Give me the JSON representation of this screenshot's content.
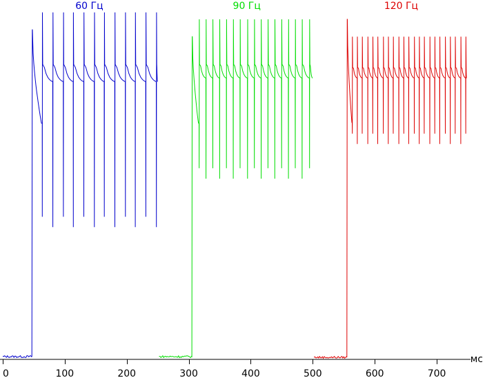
{
  "chart_data": {
    "type": "line",
    "title": "",
    "xlabel": "мс",
    "ylabel": "",
    "xlim": [
      0,
      750
    ],
    "ylim": [
      0,
      100
    ],
    "x_ticks": [
      0,
      100,
      200,
      300,
      400,
      500,
      600,
      700
    ],
    "grid": false,
    "series": [
      {
        "name": "60 Гц",
        "color": "#0000cc",
        "idle": {
          "from": 0,
          "to": 47,
          "level": 0.6
        },
        "turn_on_ms": 47,
        "end_ms": 250,
        "rise_peak": 95,
        "plateau_max": 87,
        "plateau_min": 80,
        "pulse_period_ms": 16.67,
        "pulse_peak": 100,
        "pulse_min": 38,
        "pulse_times_ms": [
          48,
          64,
          81,
          98,
          114,
          131,
          148,
          164,
          181,
          198,
          214,
          231,
          248
        ]
      },
      {
        "name": "90 Гц",
        "color": "#00dd00",
        "idle": {
          "from": 252,
          "to": 305,
          "level": 0.6
        },
        "turn_on_ms": 305,
        "end_ms": 500,
        "rise_peak": 93,
        "plateau_max": 87,
        "plateau_min": 81,
        "pulse_period_ms": 11.11,
        "pulse_peak": 98,
        "pulse_min": 52,
        "pulse_times_ms": [
          306,
          317,
          328,
          339,
          350,
          361,
          372,
          383,
          395,
          406,
          417,
          428,
          439,
          450,
          461,
          472,
          483,
          495
        ]
      },
      {
        "name": "120 Гц",
        "color": "#dd0000",
        "idle": {
          "from": 502,
          "to": 555,
          "level": 0.4
        },
        "turn_on_ms": 555,
        "end_ms": 748,
        "rise_peak": 98,
        "plateau_max": 86,
        "plateau_min": 81,
        "pulse_period_ms": 8.33,
        "pulse_peak": 93,
        "pulse_min": 62,
        "pulse_times_ms": [
          555,
          564,
          572,
          580,
          589,
          597,
          605,
          614,
          622,
          630,
          639,
          647,
          655,
          664,
          672,
          680,
          689,
          697,
          705,
          714,
          722,
          730,
          739,
          747
        ]
      }
    ]
  }
}
